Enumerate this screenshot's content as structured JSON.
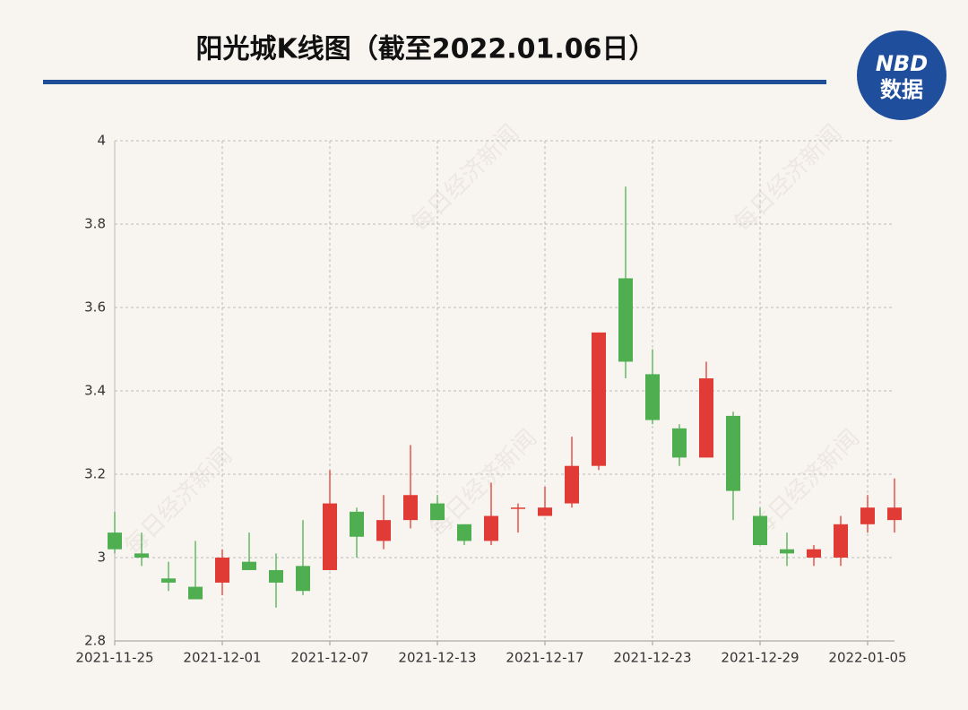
{
  "chart_data": {
    "type": "candlestick",
    "title": "阳光城K线图（截至2022.01.06日）",
    "logo": {
      "line1": "NBD",
      "line2": "数据"
    },
    "watermark": "每日经济新闻",
    "categories": [
      "2021-11-25",
      null,
      null,
      null,
      "2021-12-01",
      null,
      null,
      null,
      "2021-12-07",
      null,
      null,
      null,
      "2021-12-13",
      null,
      null,
      null,
      "2021-12-17",
      null,
      null,
      null,
      "2021-12-23",
      null,
      null,
      null,
      "2021-12-29",
      null,
      null,
      null,
      "2022-01-05",
      null
    ],
    "series": [
      {
        "open": [
          3.06,
          3.01,
          2.95,
          2.93,
          2.94,
          2.99,
          2.97,
          2.98,
          2.97,
          3.11,
          3.04,
          3.09,
          3.13,
          3.08,
          3.04,
          3.12,
          3.1,
          3.13,
          3.22,
          3.67,
          3.44,
          3.31,
          3.24,
          3.34,
          3.1,
          3.02,
          3.0,
          3.0,
          3.08,
          3.09
        ],
        "high": [
          3.11,
          3.06,
          2.99,
          3.04,
          3.02,
          3.06,
          3.01,
          3.09,
          3.21,
          3.12,
          3.15,
          3.27,
          3.15,
          3.08,
          3.18,
          3.13,
          3.17,
          3.29,
          3.54,
          3.89,
          3.5,
          3.32,
          3.47,
          3.35,
          3.12,
          3.06,
          3.03,
          3.1,
          3.15,
          3.19
        ],
        "low": [
          3.01,
          2.98,
          2.92,
          2.9,
          2.91,
          2.97,
          2.88,
          2.91,
          2.97,
          3.0,
          3.02,
          3.07,
          3.09,
          3.03,
          3.03,
          3.06,
          3.1,
          3.12,
          3.21,
          3.43,
          3.32,
          3.22,
          3.24,
          3.09,
          3.03,
          2.98,
          2.98,
          2.98,
          3.06,
          3.06
        ],
        "close": [
          3.02,
          3.0,
          2.94,
          2.9,
          3.0,
          2.97,
          2.94,
          2.92,
          3.13,
          3.05,
          3.09,
          3.15,
          3.09,
          3.04,
          3.1,
          3.12,
          3.12,
          3.22,
          3.54,
          3.47,
          3.33,
          3.24,
          3.43,
          3.16,
          3.03,
          3.01,
          3.02,
          3.08,
          3.12,
          3.12
        ]
      }
    ],
    "up_color": "#e03c35",
    "down_color": "#4fae50",
    "ylim": [
      2.8,
      4
    ],
    "yticks": [
      2.8,
      3,
      3.2,
      3.4,
      3.6,
      3.8,
      4
    ],
    "grid": true
  }
}
